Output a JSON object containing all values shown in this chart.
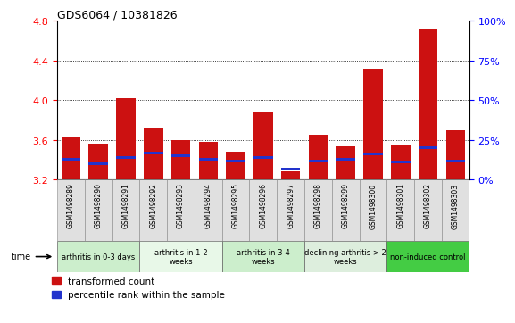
{
  "title": "GDS6064 / 10381826",
  "samples": [
    "GSM1498289",
    "GSM1498290",
    "GSM1498291",
    "GSM1498292",
    "GSM1498293",
    "GSM1498294",
    "GSM1498295",
    "GSM1498296",
    "GSM1498297",
    "GSM1498298",
    "GSM1498299",
    "GSM1498300",
    "GSM1498301",
    "GSM1498302",
    "GSM1498303"
  ],
  "transformed_count": [
    3.63,
    3.56,
    4.02,
    3.72,
    3.6,
    3.58,
    3.48,
    3.88,
    3.28,
    3.65,
    3.54,
    4.32,
    3.55,
    4.72,
    3.7
  ],
  "percentile_rank": [
    13,
    10,
    14,
    17,
    15,
    13,
    12,
    14,
    7,
    12,
    13,
    16,
    11,
    20,
    12
  ],
  "bar_color_red": "#cc1111",
  "bar_color_blue": "#2233cc",
  "ylim_left": [
    3.2,
    4.8
  ],
  "ylim_right": [
    0,
    100
  ],
  "yticks_left": [
    3.2,
    3.6,
    4.0,
    4.4,
    4.8
  ],
  "yticks_right": [
    0,
    25,
    50,
    75,
    100
  ],
  "groups": [
    {
      "label": "arthritis in 0-3 days",
      "start": 0,
      "end": 3,
      "color": "#cceecc"
    },
    {
      "label": "arthritis in 1-2\nweeks",
      "start": 3,
      "end": 6,
      "color": "#e8f8e8"
    },
    {
      "label": "arthritis in 3-4\nweeks",
      "start": 6,
      "end": 9,
      "color": "#cceecc"
    },
    {
      "label": "declining arthritis > 2\nweeks",
      "start": 9,
      "end": 12,
      "color": "#ddeedd"
    },
    {
      "label": "non-induced control",
      "start": 12,
      "end": 15,
      "color": "#44cc44"
    }
  ],
  "legend_red": "transformed count",
  "legend_blue": "percentile rank within the sample",
  "background_color": "#ffffff"
}
